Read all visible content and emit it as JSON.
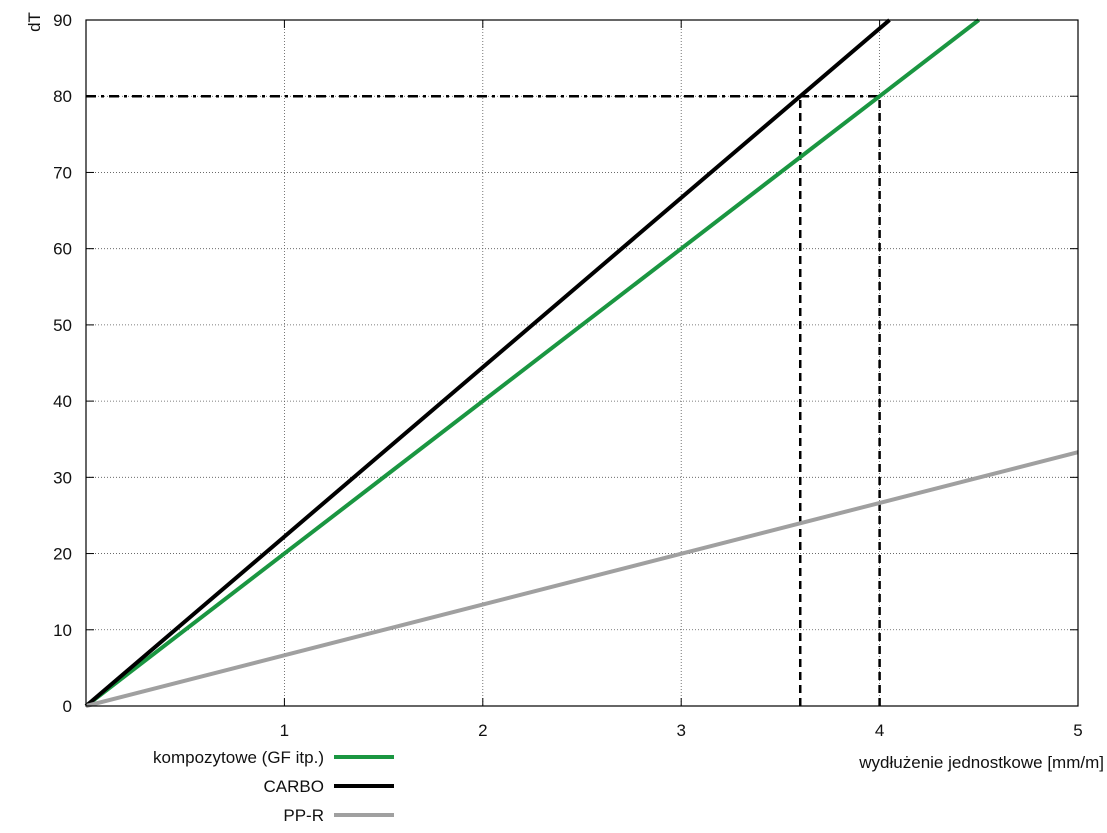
{
  "chart_data": {
    "type": "line",
    "title": "",
    "xlabel": "wydłużenie jednostkowe [mm/m]",
    "ylabel": "dT",
    "xlim": [
      0,
      5
    ],
    "ylim": [
      0,
      90
    ],
    "x_ticks": [
      "1",
      "2",
      "3",
      "4",
      "5"
    ],
    "y_ticks": [
      "0",
      "10",
      "20",
      "30",
      "40",
      "50",
      "60",
      "70",
      "80",
      "90"
    ],
    "grid": true,
    "legend_position": "bottom-left",
    "series": [
      {
        "name": "kompozytowe (GF itp.)",
        "color": "#1a9641",
        "x": [
          0,
          4.5
        ],
        "y": [
          0,
          90
        ]
      },
      {
        "name": "CARBO",
        "color": "#000000",
        "x": [
          0,
          4.05
        ],
        "y": [
          0,
          90
        ]
      },
      {
        "name": "PP-R",
        "color": "#a0a0a0",
        "x": [
          0,
          5
        ],
        "y": [
          0,
          33.3
        ]
      }
    ],
    "reference_lines": [
      {
        "style": "dash-dot",
        "x": [
          0,
          4.0
        ],
        "y": [
          80,
          80
        ]
      },
      {
        "style": "dashed",
        "x": [
          3.6,
          3.6
        ],
        "y": [
          0,
          80
        ]
      },
      {
        "style": "dashed",
        "x": [
          4.0,
          4.0
        ],
        "y": [
          0,
          80
        ]
      }
    ]
  }
}
